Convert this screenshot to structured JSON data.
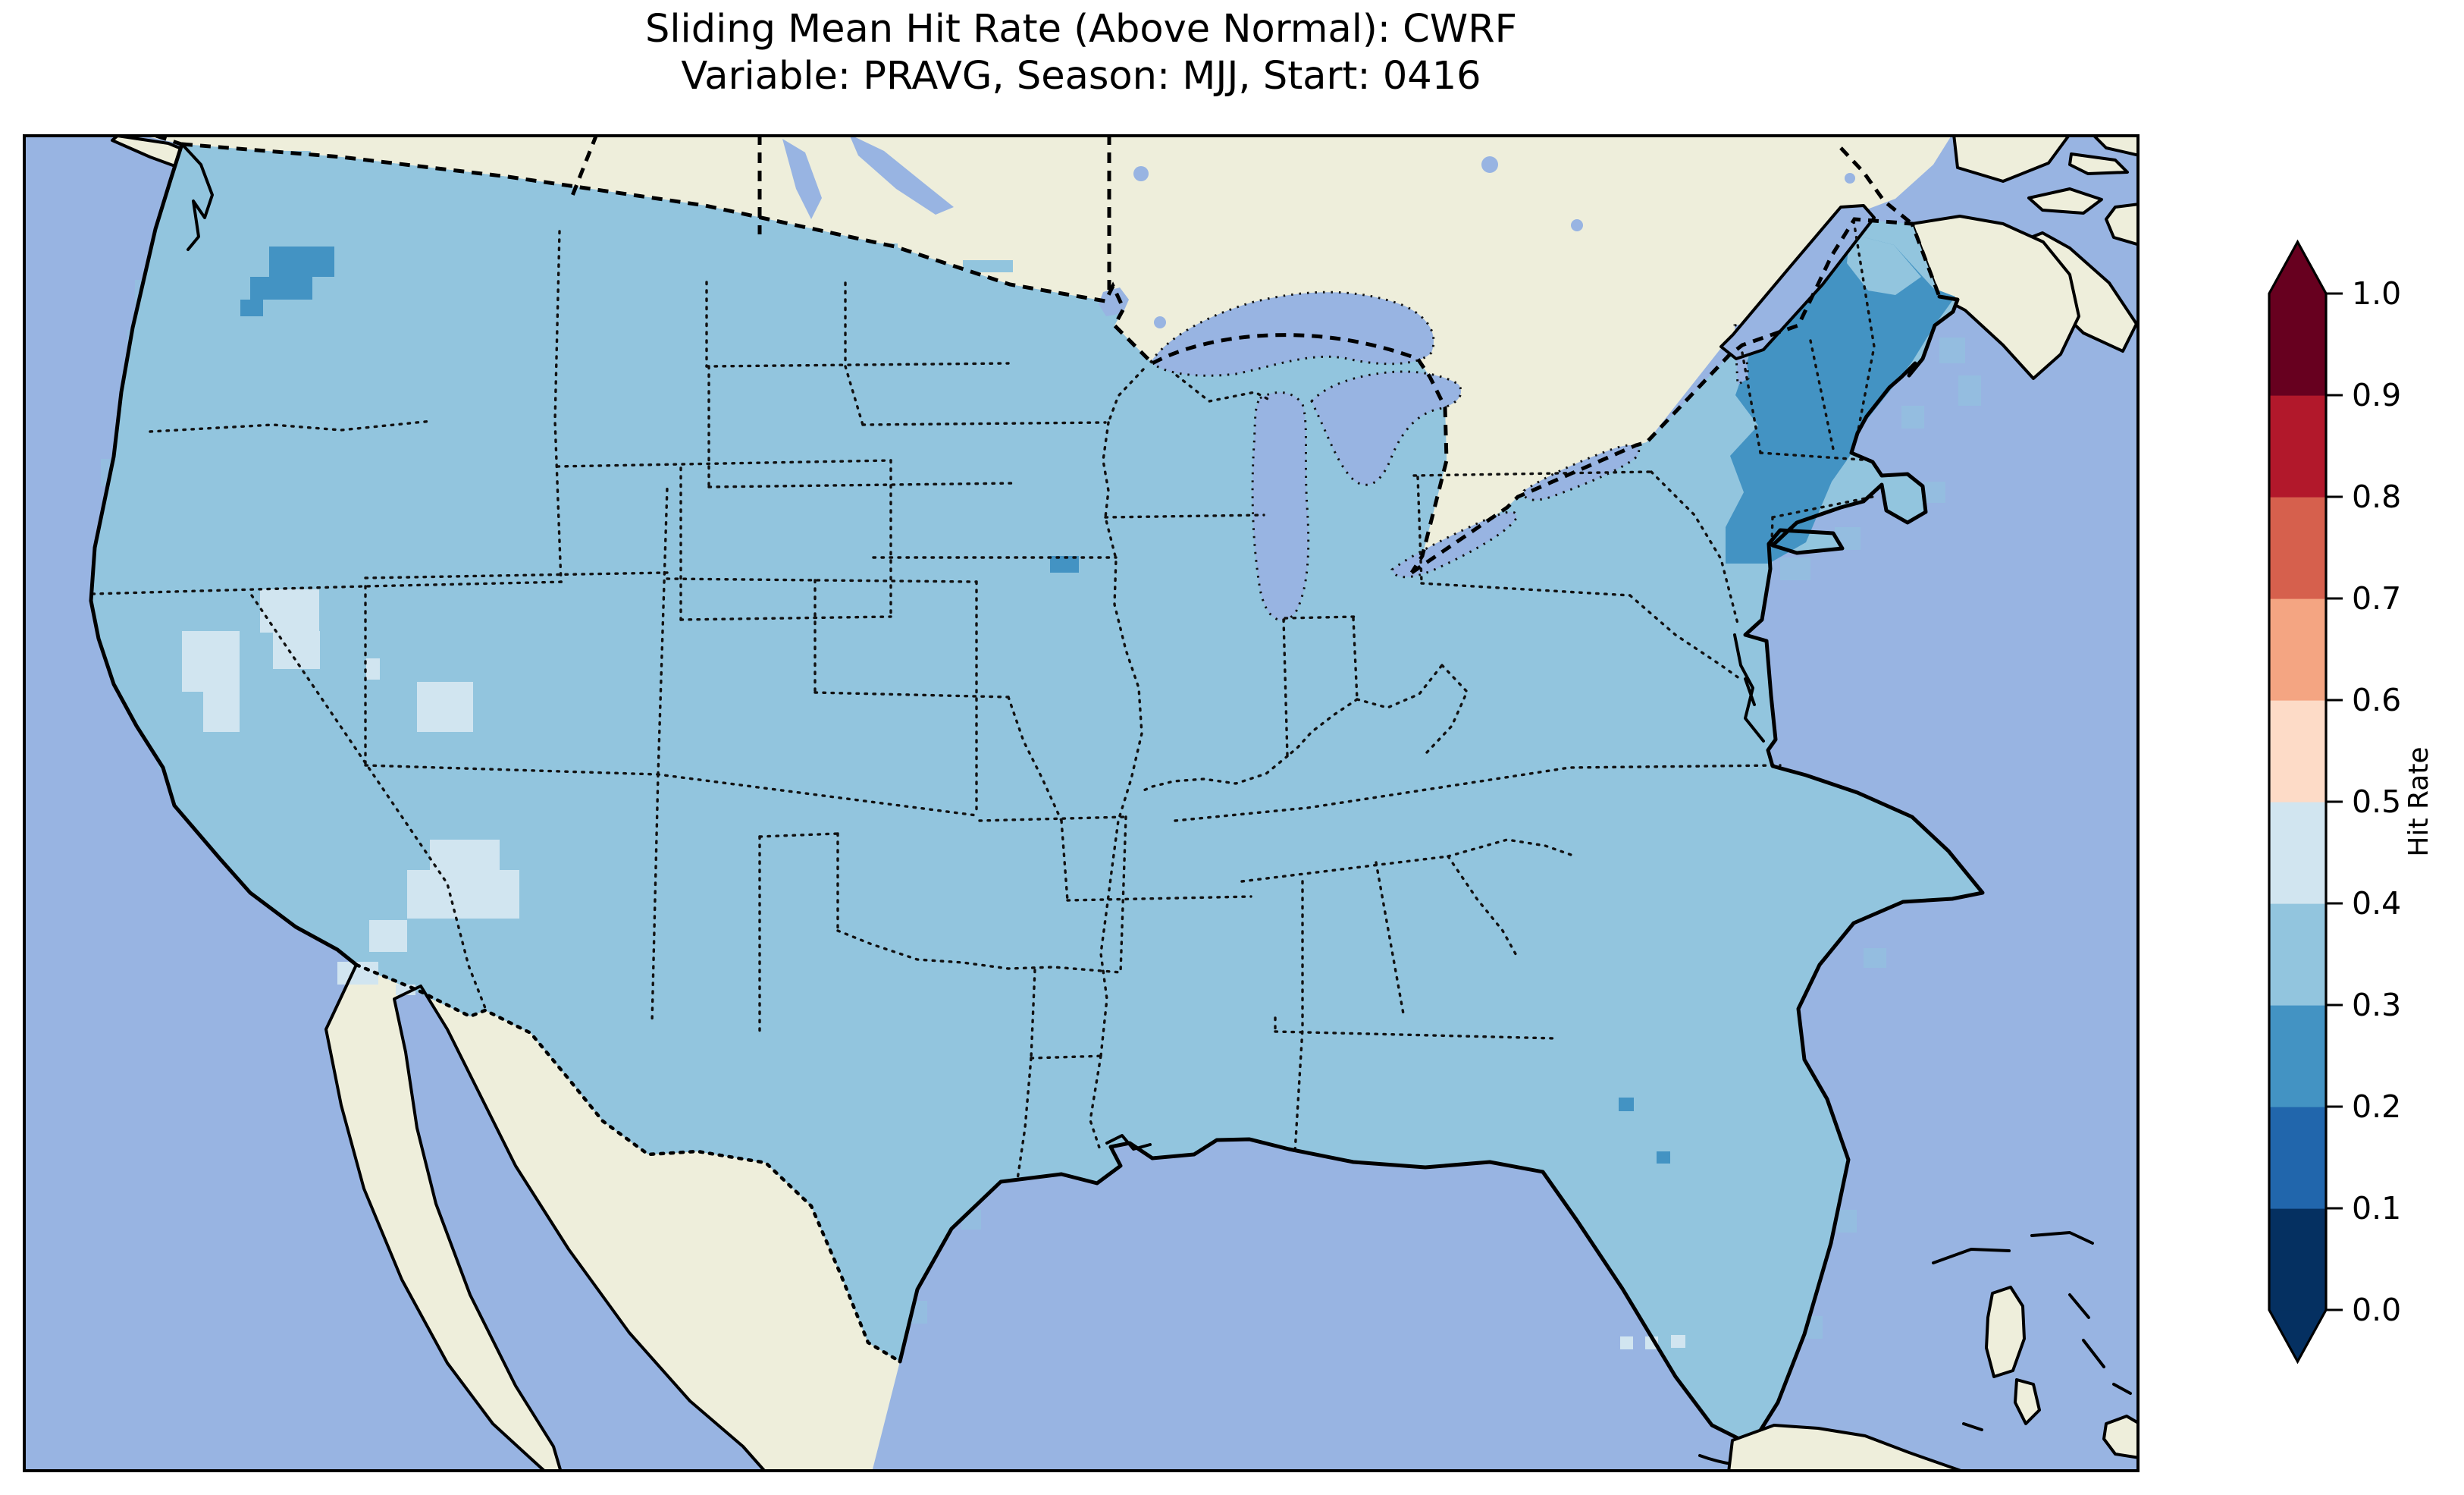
{
  "figure": {
    "title_line1": "Sliding Mean Hit Rate (Above Normal): CWRF",
    "title_line2": "Variable: PRAVG, Season: MJJ, Start: 0416"
  },
  "chart_data": {
    "type": "heatmap",
    "title": "Sliding Mean Hit Rate (Above Normal): CWRF",
    "subtitle": "Variable: PRAVG, Season: MJJ, Start: 0416",
    "metric": "Sliding Mean Hit Rate",
    "category": "Above Normal",
    "model": "CWRF",
    "variable": "PRAVG",
    "season": "MJJ",
    "start": "0416",
    "colorbar": {
      "label": "Hit Rate",
      "orientation": "vertical",
      "range": [
        0.0,
        1.0
      ],
      "tick_labels": [
        "1.0",
        "0.9",
        "0.8",
        "0.7",
        "0.6",
        "0.5",
        "0.4",
        "0.3",
        "0.2",
        "0.1",
        "0.0"
      ],
      "extend": "both",
      "colormap": "RdBu_r",
      "bins": [
        {
          "from": 0.0,
          "to": 0.1,
          "color": "#053061"
        },
        {
          "from": 0.1,
          "to": 0.2,
          "color": "#2166ac"
        },
        {
          "from": 0.2,
          "to": 0.3,
          "color": "#4393c3"
        },
        {
          "from": 0.3,
          "to": 0.4,
          "color": "#92c5de"
        },
        {
          "from": 0.4,
          "to": 0.5,
          "color": "#d1e5f0"
        },
        {
          "from": 0.5,
          "to": 0.6,
          "color": "#fddbc7"
        },
        {
          "from": 0.6,
          "to": 0.7,
          "color": "#f4a582"
        },
        {
          "from": 0.7,
          "to": 0.8,
          "color": "#d6604d"
        },
        {
          "from": 0.8,
          "to": 0.9,
          "color": "#b2182b"
        },
        {
          "from": 0.9,
          "to": 1.0,
          "color": "#67001f"
        }
      ]
    },
    "map": {
      "extent": "Contiguous United States with surrounding Canada, Mexico, Pacific, Gulf of Mexico and western Atlantic",
      "base_colors": {
        "ocean": "#98b4e2",
        "land": "#eeeedb",
        "coastline": "#000000",
        "state_border": "#111111"
      },
      "regions": [
        {
          "area": "Most of the contiguous United States",
          "hit_rate_bin": "0.3-0.4",
          "color": "#92c5de"
        },
        {
          "area": "New England: Maine, New Hampshire, Vermont, Massachusetts, Connecticut, southeastern New York",
          "hit_rate_bin": "0.2-0.3",
          "color": "#4393c3"
        },
        {
          "area": "Central Washington patch",
          "hit_rate_bin": "0.2-0.3",
          "color": "#4393c3"
        },
        {
          "area": "Single cell in northwest Iowa",
          "hit_rate_bin": "0.2-0.3",
          "color": "#4393c3"
        },
        {
          "area": "Two cells on northeast Florida coast",
          "hit_rate_bin": "0.2-0.3",
          "color": "#4393c3"
        },
        {
          "area": "Western and central Nevada patches",
          "hit_rate_bin": "0.4-0.5",
          "color": "#d1e5f0"
        },
        {
          "area": "Southern Utah / northern Arizona patch",
          "hit_rate_bin": "0.4-0.5",
          "color": "#d1e5f0"
        },
        {
          "area": "Southern Arizona border cells",
          "hit_rate_bin": "0.4-0.5",
          "color": "#d1e5f0"
        },
        {
          "area": "Northern tip of Maine",
          "hit_rate_bin": "0.3-0.4",
          "color": "#92c5de"
        },
        {
          "area": "Few offshore cells southwest of Florida Keys",
          "hit_rate_bin": "0.4-0.5",
          "color": "#d1e5f0"
        }
      ]
    }
  }
}
